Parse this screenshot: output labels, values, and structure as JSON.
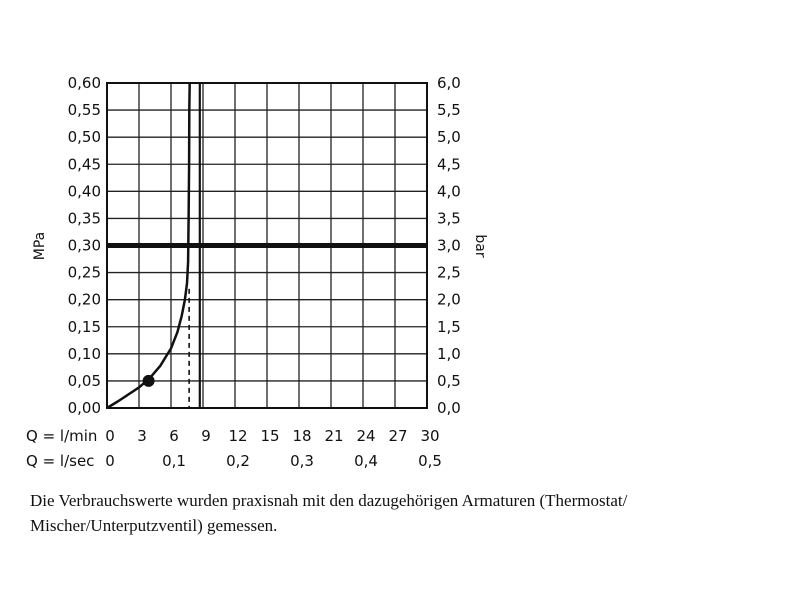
{
  "chart_data": {
    "type": "line",
    "x_label_rows": [
      {
        "prefix": "Q = l/min",
        "values": [
          0,
          3,
          6,
          9,
          12,
          15,
          18,
          21,
          24,
          27,
          30
        ],
        "labels": [
          "0",
          "3",
          "6",
          "9",
          "12",
          "15",
          "18",
          "21",
          "24",
          "27",
          "30"
        ]
      },
      {
        "prefix": "Q = l/sec",
        "values": [
          0,
          6,
          12,
          18,
          24,
          30
        ],
        "labels": [
          "0",
          "0,1",
          "0,2",
          "0,3",
          "0,4",
          "0,5"
        ]
      }
    ],
    "xlim": [
      0,
      30
    ],
    "y_left": {
      "label": "MPa",
      "ylim": [
        0,
        0.6
      ],
      "tick_values": [
        0,
        0.05,
        0.1,
        0.15,
        0.2,
        0.25,
        0.3,
        0.35,
        0.4,
        0.45,
        0.5,
        0.55,
        0.6
      ],
      "tick_labels": [
        "0,00",
        "0,05",
        "0,10",
        "0,15",
        "0,20",
        "0,25",
        "0,30",
        "0,35",
        "0,40",
        "0,45",
        "0,50",
        "0,55",
        "0,60"
      ]
    },
    "y_right": {
      "label": "bar",
      "ylim": [
        0,
        6
      ],
      "tick_labels": [
        "0,0",
        "0,5",
        "1,0",
        "1,5",
        "2,0",
        "2,5",
        "3,0",
        "3,5",
        "4,0",
        "4,5",
        "5,0",
        "5,5",
        "6,0"
      ]
    },
    "grid": true,
    "series": [
      {
        "values_x": [
          0,
          1,
          2,
          3,
          4,
          5,
          6,
          6.6,
          7,
          7.3,
          7.5,
          7.6,
          7.65,
          7.7,
          7.72,
          7.75
        ],
        "values_y": [
          0,
          0.012,
          0.025,
          0.038,
          0.055,
          0.078,
          0.11,
          0.14,
          0.17,
          0.2,
          0.23,
          0.27,
          0.35,
          0.45,
          0.55,
          0.6
        ]
      }
    ],
    "marker_point": {
      "x": 3.9,
      "y": 0.05
    },
    "reference_line_y": 0.3,
    "reference_line_x": 8.7,
    "dashed_x": 7.7
  },
  "caption": "Die Verbrauchswerte wurden praxisnah mit den dazugehörigen Armaturen (Thermostat/ Mischer/Unterputzventil) gemessen."
}
